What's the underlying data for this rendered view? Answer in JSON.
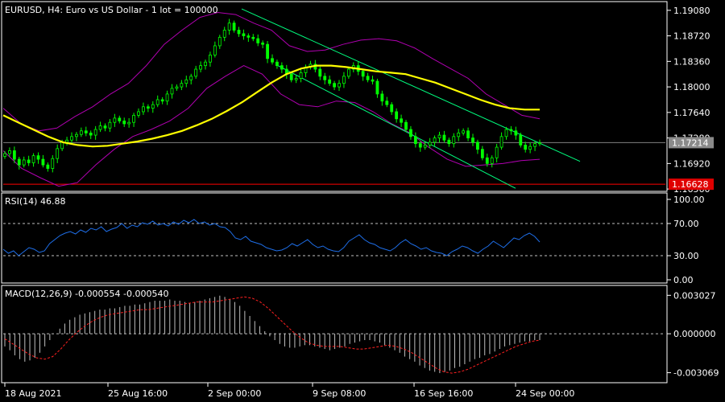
{
  "chart_data": [
    {
      "type": "line",
      "panel": "price",
      "title": "EURUSD, H4:  Euro vs US Dollar - 1 lot = 100000",
      "x_ticks": [
        "18 Aug 2021",
        "25 Aug 16:00",
        "2 Sep 00:00",
        "9 Sep 08:00",
        "16 Sep 16:00",
        "24 Sep 00:00"
      ],
      "y_ticks": [
        "1.19080",
        "1.18720",
        "1.18360",
        "1.18000",
        "1.17640",
        "1.17280",
        "1.16920",
        "1.16560"
      ],
      "ylim": [
        1.1655,
        1.1918
      ],
      "grid": false,
      "current_price": "1.17214",
      "current_price_value": 1.17214,
      "level_line": "1.16628",
      "level_line_value": 1.16628,
      "candles_close": [
        1.1706,
        1.171,
        1.1698,
        1.169,
        1.1697,
        1.1693,
        1.1703,
        1.1698,
        1.169,
        1.1685,
        1.1699,
        1.1713,
        1.1722,
        1.1725,
        1.173,
        1.1733,
        1.1738,
        1.1735,
        1.1732,
        1.174,
        1.1745,
        1.1742,
        1.175,
        1.1756,
        1.1752,
        1.1748,
        1.175,
        1.176,
        1.1765,
        1.1772,
        1.177,
        1.1775,
        1.1782,
        1.178,
        1.179,
        1.1798,
        1.18,
        1.1805,
        1.181,
        1.1815,
        1.1825,
        1.183,
        1.1835,
        1.1845,
        1.1858,
        1.187,
        1.188,
        1.189,
        1.188,
        1.1875,
        1.1872,
        1.187,
        1.1868,
        1.1862,
        1.186,
        1.184,
        1.1835,
        1.183,
        1.1825,
        1.1818,
        1.181,
        1.1812,
        1.182,
        1.1828,
        1.1832,
        1.1825,
        1.1815,
        1.181,
        1.1805,
        1.18,
        1.1805,
        1.1815,
        1.1825,
        1.183,
        1.1822,
        1.1815,
        1.181,
        1.1808,
        1.179,
        1.178,
        1.1775,
        1.1765,
        1.1755,
        1.175,
        1.174,
        1.173,
        1.172,
        1.1715,
        1.1718,
        1.1722,
        1.1728,
        1.1732,
        1.1725,
        1.172,
        1.173,
        1.1735,
        1.1738,
        1.1728,
        1.1722,
        1.1712,
        1.17,
        1.1692,
        1.17,
        1.1715,
        1.173,
        1.174,
        1.1738,
        1.1732,
        1.1718,
        1.1712,
        1.1716,
        1.172,
        1.1721
      ],
      "ma_yellow": [
        1.176,
        1.175,
        1.174,
        1.173,
        1.1722,
        1.1718,
        1.1716,
        1.1717,
        1.172,
        1.1723,
        1.1727,
        1.1732,
        1.1738,
        1.1746,
        1.1755,
        1.1766,
        1.1778,
        1.1792,
        1.1806,
        1.1818,
        1.1826,
        1.183,
        1.183,
        1.1828,
        1.1825,
        1.1822,
        1.182,
        1.1818,
        1.1812,
        1.1806,
        1.1798,
        1.179,
        1.1782,
        1.1775,
        1.177,
        1.1768,
        1.1768
      ],
      "bb_upper": [
        1.177,
        1.1748,
        1.1738,
        1.1742,
        1.1758,
        1.1772,
        1.179,
        1.1805,
        1.183,
        1.186,
        1.188,
        1.1898,
        1.1905,
        1.1902,
        1.189,
        1.188,
        1.1858,
        1.185,
        1.1852,
        1.186,
        1.1866,
        1.1868,
        1.1865,
        1.1855,
        1.184,
        1.1826,
        1.1812,
        1.179,
        1.1775,
        1.176,
        1.1755
      ],
      "bb_lower": [
        1.171,
        1.1685,
        1.1672,
        1.166,
        1.1665,
        1.169,
        1.1712,
        1.173,
        1.174,
        1.1752,
        1.177,
        1.1798,
        1.1815,
        1.183,
        1.1818,
        1.179,
        1.1775,
        1.1772,
        1.178,
        1.1778,
        1.1765,
        1.1748,
        1.1735,
        1.1715,
        1.1698,
        1.1688,
        1.169,
        1.1692,
        1.1696,
        1.1698
      ],
      "channel_upper": {
        "start": 1.191,
        "end": 1.1695
      },
      "channel_lower": {
        "start": 1.183,
        "end": 1.1657
      }
    },
    {
      "type": "line",
      "panel": "rsi",
      "title": "RSI(14) 46.88",
      "y_ticks": [
        "100.00",
        "70.00",
        "30.00",
        "0.00"
      ],
      "ylim": [
        0,
        100
      ],
      "levels": [
        70,
        30
      ],
      "values": [
        38,
        33,
        36,
        30,
        35,
        40,
        38,
        34,
        36,
        45,
        50,
        55,
        58,
        60,
        57,
        62,
        59,
        64,
        62,
        66,
        60,
        63,
        65,
        70,
        64,
        68,
        66,
        71,
        69,
        73,
        68,
        70,
        67,
        72,
        69,
        74,
        71,
        75,
        70,
        72,
        68,
        70,
        66,
        65,
        60,
        52,
        50,
        54,
        48,
        46,
        44,
        40,
        38,
        36,
        37,
        40,
        45,
        42,
        46,
        50,
        44,
        40,
        42,
        38,
        36,
        35,
        40,
        48,
        52,
        56,
        50,
        46,
        44,
        40,
        38,
        36,
        40,
        46,
        50,
        45,
        42,
        38,
        40,
        36,
        34,
        33,
        30,
        35,
        38,
        42,
        40,
        36,
        33,
        38,
        42,
        48,
        44,
        40,
        46,
        52,
        50,
        55,
        58,
        54,
        47
      ]
    },
    {
      "type": "bar",
      "panel": "macd",
      "title": "MACD(12,26,9) -0.000554 -0.000540",
      "y_ticks": [
        "0.003027",
        "0.000000",
        "-0.003069"
      ],
      "ylim": [
        -0.00335,
        0.0033
      ],
      "histogram": [
        -0.001,
        -0.0013,
        -0.0017,
        -0.002,
        -0.0022,
        -0.0021,
        -0.0019,
        -0.0015,
        -0.001,
        -0.0005,
        0.0,
        0.0004,
        0.0008,
        0.0011,
        0.0013,
        0.0015,
        0.0016,
        0.0017,
        0.0018,
        0.0019,
        0.0019,
        0.002,
        0.002,
        0.0021,
        0.0022,
        0.0022,
        0.0023,
        0.0023,
        0.0024,
        0.0025,
        0.0026,
        0.0026,
        0.0026,
        0.0027,
        0.0026,
        0.0026,
        0.0025,
        0.0024,
        0.0025,
        0.0026,
        0.0027,
        0.0028,
        0.0029,
        0.003,
        0.0029,
        0.0027,
        0.0025,
        0.0022,
        0.0018,
        0.0014,
        0.001,
        0.0006,
        0.0002,
        -0.0002,
        -0.0005,
        -0.0008,
        -0.001,
        -0.0011,
        -0.0011,
        -0.001,
        -0.0009,
        -0.0009,
        -0.001,
        -0.0011,
        -0.0012,
        -0.0013,
        -0.0012,
        -0.0011,
        -0.001,
        -0.0008,
        -0.0007,
        -0.0006,
        -0.0005,
        -0.0005,
        -0.0006,
        -0.0007,
        -0.0009,
        -0.0011,
        -0.0013,
        -0.0015,
        -0.0018,
        -0.002,
        -0.0022,
        -0.0025,
        -0.0027,
        -0.0029,
        -0.003,
        -0.0031,
        -0.003,
        -0.0029,
        -0.0027,
        -0.0026,
        -0.0024,
        -0.0022,
        -0.002,
        -0.0019,
        -0.0017,
        -0.0016,
        -0.0014,
        -0.0012,
        -0.001,
        -0.0009,
        -0.0008,
        -0.0007,
        -0.0006,
        -0.0006,
        -0.0005,
        -0.0005
      ],
      "signal": [
        -0.0004,
        -0.0008,
        -0.0012,
        -0.0016,
        -0.0019,
        -0.002,
        -0.0018,
        -0.0012,
        -0.0005,
        0.0001,
        0.0006,
        0.001,
        0.0013,
        0.0015,
        0.0016,
        0.0017,
        0.0018,
        0.0019,
        0.0019,
        0.002,
        0.0021,
        0.0022,
        0.0023,
        0.0024,
        0.0025,
        0.0025,
        0.0025,
        0.0026,
        0.0027,
        0.0028,
        0.0029,
        0.0028,
        0.0025,
        0.002,
        0.0014,
        0.0008,
        0.0002,
        -0.0003,
        -0.0007,
        -0.0009,
        -0.001,
        -0.001,
        -0.001,
        -0.0011,
        -0.0012,
        -0.0012,
        -0.0011,
        -0.001,
        -0.0009,
        -0.001,
        -0.0012,
        -0.0015,
        -0.0019,
        -0.0023,
        -0.0027,
        -0.003,
        -0.0031,
        -0.003,
        -0.0028,
        -0.0025,
        -0.0022,
        -0.0019,
        -0.0016,
        -0.0013,
        -0.001,
        -0.0008,
        -0.0006,
        -0.0005
      ]
    }
  ],
  "colors": {
    "background": "#000000",
    "axis": "#ffffff",
    "candle": "#00ff00",
    "ma": "#ffff00",
    "bollinger": "#b000b0",
    "channel": "#00ff7f",
    "price_line": "#808080",
    "level_line": "#ff0000",
    "rsi": "#1e6ee8",
    "macd_hist": "#c0c0c0",
    "macd_signal": "#ff2020"
  }
}
